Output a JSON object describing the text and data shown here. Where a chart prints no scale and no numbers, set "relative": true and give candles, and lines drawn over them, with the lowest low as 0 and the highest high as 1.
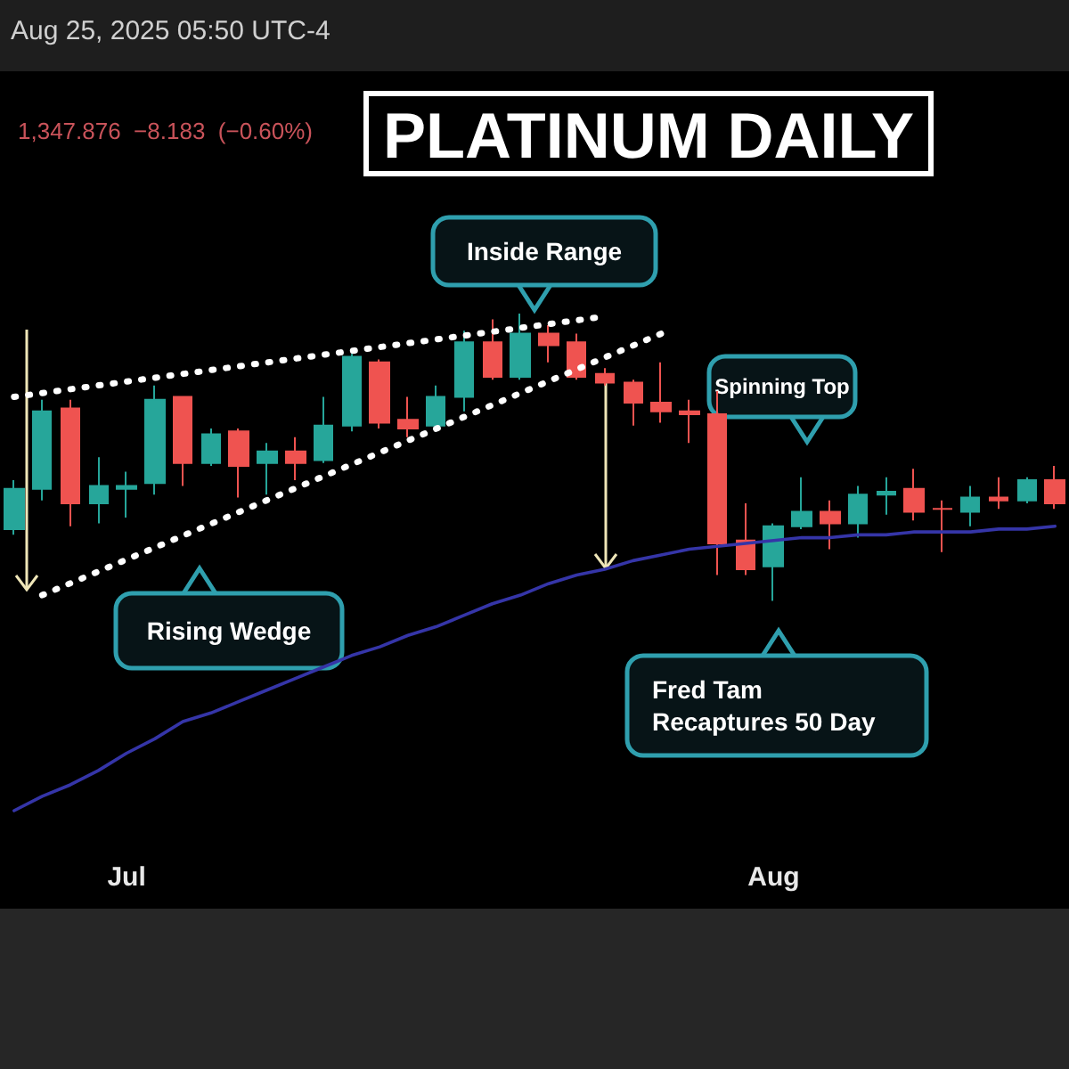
{
  "chart_data": {
    "type": "candlestick",
    "title": "PLATINUM DAILY",
    "subtitle": "1,347.876  −8.183  (−0.60%)",
    "relative": true,
    "marker": "none",
    "annotations": [
      "Aug 25, 2025 05:50 UTC-4",
      "Inside Range",
      "Rising Wedge",
      "Spinning Top",
      "Fred Tam\nRecaptures 50 Day"
    ],
    "categories": [
      null,
      null,
      null,
      null,
      "Jul",
      null,
      null,
      null,
      null,
      null,
      null,
      null,
      null,
      null,
      null,
      null,
      null,
      null,
      null,
      null,
      null,
      null,
      null,
      null,
      null,
      null,
      null,
      "Aug",
      null,
      null,
      null,
      null,
      null,
      null,
      null,
      null,
      null,
      null
    ],
    "ohlc": [
      [
        0.25,
        0.42,
        0.23,
        0.39
      ],
      [
        0.39,
        0.7,
        0.35,
        0.66
      ],
      [
        0.67,
        0.7,
        0.26,
        0.34
      ],
      [
        0.34,
        0.5,
        0.27,
        0.4
      ],
      [
        0.39,
        0.45,
        0.29,
        0.4
      ],
      [
        0.41,
        0.75,
        0.37,
        0.7
      ],
      [
        0.71,
        0.71,
        0.4,
        0.48
      ],
      [
        0.48,
        0.6,
        0.47,
        0.58
      ],
      [
        0.59,
        0.6,
        0.36,
        0.47
      ],
      [
        0.48,
        0.55,
        0.37,
        0.52
      ],
      [
        0.52,
        0.57,
        0.42,
        0.48
      ],
      [
        0.49,
        0.71,
        0.48,
        0.61
      ],
      [
        0.61,
        0.86,
        0.59,
        0.85
      ],
      [
        0.83,
        0.84,
        0.6,
        0.62
      ],
      [
        0.63,
        0.71,
        0.57,
        0.6
      ],
      [
        0.61,
        0.75,
        0.59,
        0.71
      ],
      [
        0.71,
        0.94,
        0.66,
        0.9
      ],
      [
        0.9,
        0.98,
        0.77,
        0.78
      ],
      [
        0.78,
        1.0,
        0.77,
        0.93
      ],
      [
        0.93,
        0.96,
        0.83,
        0.89
      ],
      [
        0.9,
        0.93,
        0.77,
        0.78
      ],
      [
        0.79,
        0.81,
        0.75,
        0.76
      ],
      [
        0.76,
        0.77,
        0.61,
        0.69
      ],
      [
        0.69,
        0.83,
        0.62,
        0.66
      ],
      [
        0.66,
        0.7,
        0.55,
        0.65
      ],
      [
        0.65,
        0.73,
        0.09,
        0.2
      ],
      [
        0.21,
        0.34,
        0.09,
        0.11
      ],
      [
        0.12,
        0.27,
        0.0,
        0.26
      ],
      [
        0.26,
        0.43,
        0.25,
        0.31
      ],
      [
        0.31,
        0.35,
        0.18,
        0.27
      ],
      [
        0.27,
        0.4,
        0.22,
        0.37
      ],
      [
        0.37,
        0.43,
        0.3,
        0.38
      ],
      [
        0.39,
        0.46,
        0.28,
        0.31
      ],
      [
        0.32,
        0.35,
        0.17,
        0.32
      ],
      [
        0.31,
        0.4,
        0.26,
        0.36
      ],
      [
        0.36,
        0.43,
        0.32,
        0.35
      ],
      [
        0.35,
        0.43,
        0.34,
        0.42
      ],
      [
        0.42,
        0.47,
        0.32,
        0.34
      ]
    ],
    "colors": [
      "#26a69a",
      "#26a69a",
      "#ef5350",
      "#26a69a",
      "#26a69a",
      "#26a69a",
      "#ef5350",
      "#26a69a",
      "#ef5350",
      "#26a69a",
      "#ef5350",
      "#26a69a",
      "#26a69a",
      "#ef5350",
      "#ef5350",
      "#26a69a",
      "#26a69a",
      "#ef5350",
      "#26a69a",
      "#ef5350",
      "#ef5350",
      "#ef5350",
      "#ef5350",
      "#ef5350",
      "#ef5350",
      "#ef5350",
      "#ef5350",
      "#26a69a",
      "#26a69a",
      "#ef5350",
      "#26a69a",
      "#26a69a",
      "#ef5350",
      "#ef5350",
      "#26a69a",
      "#ef5350",
      "#26a69a",
      "#ef5350"
    ],
    "series": [
      {
        "type": "line",
        "color": "#3535a8",
        "line_style": "solid",
        "values": [
          -0.73,
          -0.68,
          -0.64,
          -0.59,
          -0.53,
          -0.48,
          -0.42,
          -0.39,
          -0.35,
          -0.31,
          -0.27,
          -0.23,
          -0.19,
          -0.16,
          -0.12,
          -0.09,
          -0.05,
          -0.01,
          0.02,
          0.06,
          0.09,
          0.11,
          0.14,
          0.16,
          0.18,
          0.19,
          0.2,
          0.21,
          0.22,
          0.22,
          0.23,
          0.23,
          0.24,
          0.24,
          0.24,
          0.25,
          0.25,
          0.26
        ]
      },
      {
        "type": "line",
        "color": "#ffffff",
        "line_style": "dotted",
        "values": [
          0.71,
          null,
          null,
          null,
          null,
          null,
          null,
          null,
          null,
          null,
          null,
          null,
          null,
          null,
          null,
          null,
          null,
          null,
          null,
          null,
          null,
          0.99,
          null,
          null,
          null,
          null,
          null,
          null,
          null,
          null,
          null,
          null,
          null,
          null,
          null,
          null,
          null,
          null
        ]
      },
      {
        "type": "line",
        "color": "#ffffff",
        "line_style": "dotted",
        "values": [
          null,
          0.02,
          null,
          null,
          null,
          null,
          null,
          null,
          null,
          null,
          null,
          null,
          null,
          null,
          null,
          null,
          null,
          null,
          null,
          null,
          null,
          null,
          null,
          0.93,
          null,
          null,
          null,
          null,
          null,
          null,
          null,
          null,
          null,
          null,
          null,
          null,
          null,
          null
        ]
      }
    ]
  }
}
